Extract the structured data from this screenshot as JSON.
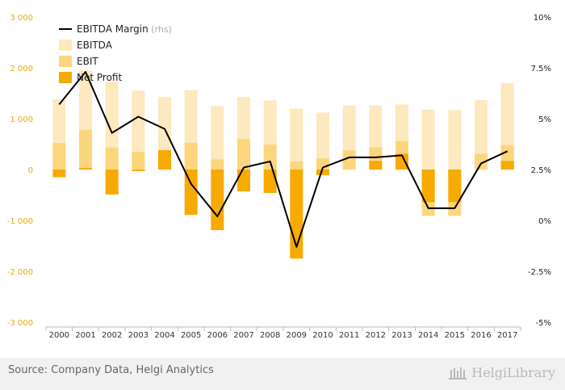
{
  "chart_data": {
    "type": "bar",
    "categories": [
      "2000",
      "2001",
      "2002",
      "2003",
      "2004",
      "2005",
      "2006",
      "2007",
      "2008",
      "2009",
      "2010",
      "2011",
      "2012",
      "2013",
      "2014",
      "2015",
      "2016",
      "2017"
    ],
    "series": [
      {
        "name": "EBITDA",
        "kind": "bar",
        "axis": "left",
        "color": "#fde9bf",
        "values": [
          1380,
          1950,
          1730,
          1550,
          1430,
          1560,
          1250,
          1430,
          1360,
          1200,
          1120,
          1260,
          1260,
          1280,
          1180,
          1170,
          1370,
          1700
        ]
      },
      {
        "name": "EBIT",
        "kind": "bar",
        "axis": "left",
        "color": "#fcd67d",
        "values": [
          520,
          780,
          430,
          350,
          380,
          530,
          200,
          600,
          490,
          160,
          220,
          380,
          440,
          560,
          -910,
          -910,
          310,
          480
        ]
      },
      {
        "name": "Net Profit",
        "kind": "bar",
        "axis": "left",
        "color": "#f7aa00",
        "values": [
          -150,
          30,
          -490,
          -30,
          380,
          -890,
          -1190,
          -430,
          -460,
          -1750,
          -110,
          0,
          170,
          310,
          -640,
          -640,
          0,
          170
        ]
      },
      {
        "name": "EBITDA Margin",
        "qualifier": "(rhs)",
        "kind": "line",
        "axis": "right",
        "color": "#000000",
        "values": [
          5.7,
          7.3,
          4.3,
          5.1,
          4.5,
          1.8,
          0.2,
          2.6,
          2.9,
          -1.3,
          2.6,
          3.1,
          3.1,
          3.2,
          0.6,
          0.6,
          2.8,
          3.4
        ]
      }
    ],
    "y_left": {
      "ticks": [
        3000,
        2000,
        1000,
        0,
        -1000,
        -2000,
        -3000
      ],
      "tick_labels": [
        "3 000",
        "2 000",
        "1 000",
        "0",
        "-1 000",
        "-2 000",
        "-3 000"
      ],
      "range": [
        -3000,
        3000
      ]
    },
    "y_right": {
      "ticks": [
        10,
        7.5,
        5,
        2.5,
        0,
        -2.5,
        -5
      ],
      "tick_labels": [
        "10%",
        "7.5%",
        "5%",
        "2.5%",
        "0%",
        "-2.5%",
        "-5%"
      ],
      "range": [
        -5,
        10
      ]
    },
    "legend_position": "top-left",
    "grid": false
  },
  "colors": {
    "left_tick": "#f0a800",
    "right_tick": "#222222",
    "axis": "#bbbbbb"
  },
  "footer": {
    "source": "Source: Company Data, Helgi Analytics",
    "brand": "HelgiLibrary",
    "brand_icon": "library-columns-icon"
  }
}
